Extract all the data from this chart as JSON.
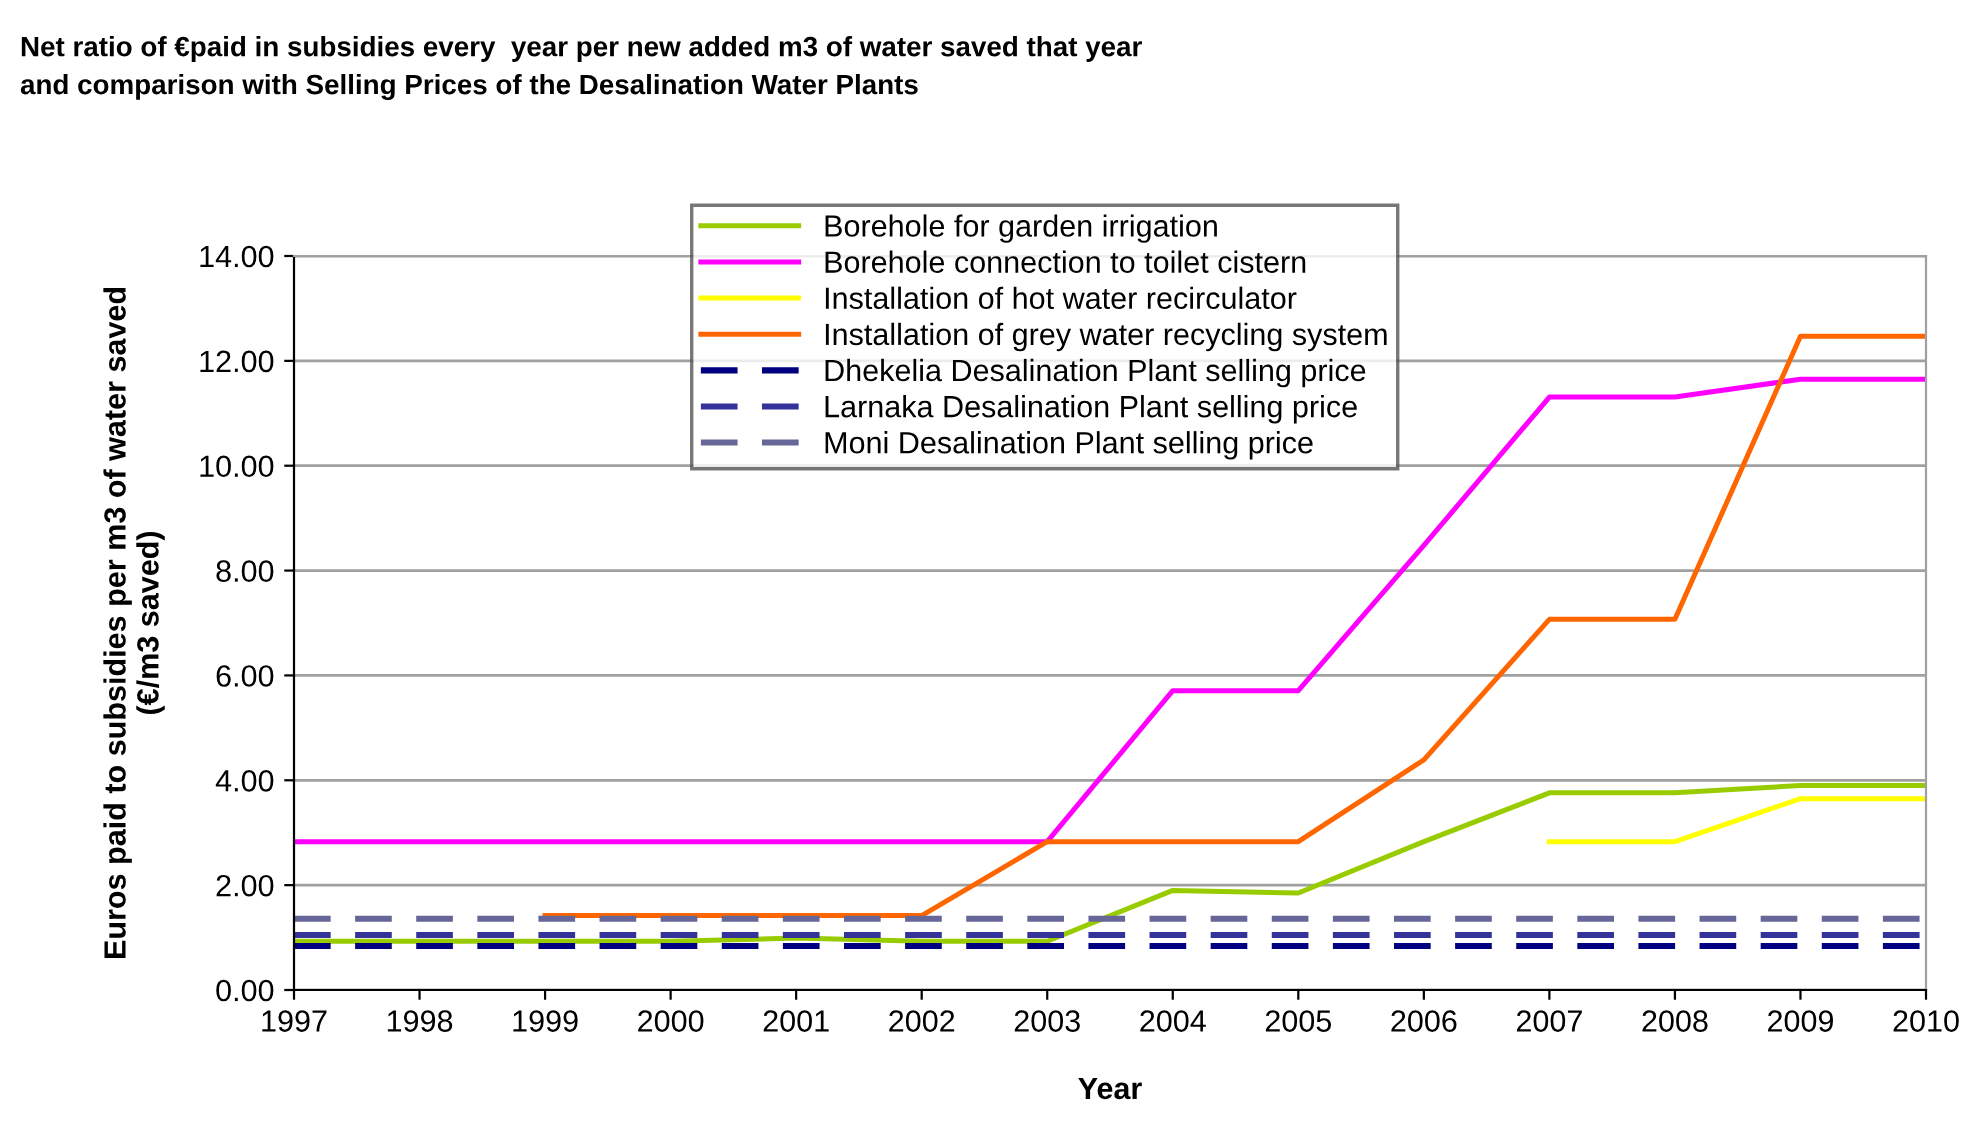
{
  "chart_data": {
    "type": "line",
    "title": "Net ratio of €paid in subsidies every  year per new added m3 of water saved that year\nand comparison with Selling Prices of the Desalination Water Plants",
    "xlabel": "Year",
    "ylabel": "Euros paid to subsidies per m3 of water saved\n(€/m3 saved)",
    "categories": [
      "1997",
      "1998",
      "1999",
      "2000",
      "2001",
      "2002",
      "2003",
      "2004",
      "2005",
      "2006",
      "2007",
      "2008",
      "2009",
      "2010"
    ],
    "series": [
      {
        "name": "Borehole for garden irrigation",
        "color": "#99cc00",
        "values": [
          0.93,
          0.93,
          0.93,
          0.93,
          0.99,
          0.93,
          0.93,
          1.9,
          1.85,
          2.83,
          3.76,
          3.76,
          3.9,
          3.9
        ]
      },
      {
        "name": "Borehole connection to toilet cistern",
        "color": "#ff00ff",
        "values": [
          2.83,
          2.83,
          2.83,
          2.83,
          2.83,
          2.83,
          2.83,
          5.71,
          5.71,
          8.48,
          11.31,
          11.31,
          11.65,
          11.65
        ]
      },
      {
        "name": "Installation of hot water recirculator",
        "color": "#ffff00",
        "values": [
          null,
          null,
          null,
          null,
          null,
          null,
          null,
          null,
          null,
          null,
          2.83,
          2.83,
          3.65,
          3.65
        ]
      },
      {
        "name": "Installation of grey water recycling system",
        "color": "#ff6600",
        "values": [
          null,
          null,
          1.42,
          1.42,
          1.42,
          1.42,
          2.83,
          2.83,
          2.83,
          4.39,
          7.07,
          7.07,
          12.47,
          12.47
        ]
      },
      {
        "name": "Dhekelia Desalination Plant selling price",
        "color": "#000080",
        "line_style": "dashed",
        "values": [
          0.84,
          0.84,
          0.84,
          0.84,
          0.84,
          0.84,
          0.84,
          0.84,
          0.84,
          0.84,
          0.84,
          0.84,
          0.84,
          0.84
        ]
      },
      {
        "name": "Larnaka Desalination Plant selling price",
        "color": "#333399",
        "line_style": "dashed",
        "values": [
          1.05,
          1.05,
          1.05,
          1.05,
          1.05,
          1.05,
          1.05,
          1.05,
          1.05,
          1.05,
          1.05,
          1.05,
          1.05,
          1.05
        ]
      },
      {
        "name": "Moni Desalination Plant selling price",
        "color": "#666699",
        "line_style": "dashed",
        "values": [
          1.36,
          1.36,
          1.36,
          1.36,
          1.36,
          1.36,
          1.36,
          1.36,
          1.36,
          1.36,
          1.36,
          1.36,
          1.36,
          1.36
        ]
      }
    ],
    "ylim": [
      0,
      14
    ],
    "yticks": [
      {
        "value": 0,
        "label": "0.00"
      },
      {
        "value": 2,
        "label": "2.00"
      },
      {
        "value": 4,
        "label": "4.00"
      },
      {
        "value": 6,
        "label": "6.00"
      },
      {
        "value": 8,
        "label": "8.00"
      },
      {
        "value": 10,
        "label": "10.00"
      },
      {
        "value": 12,
        "label": "12.00"
      },
      {
        "value": 14,
        "label": "14.00"
      }
    ],
    "grid": "y",
    "legend": "top",
    "line_style": "solid",
    "marker": "none"
  }
}
